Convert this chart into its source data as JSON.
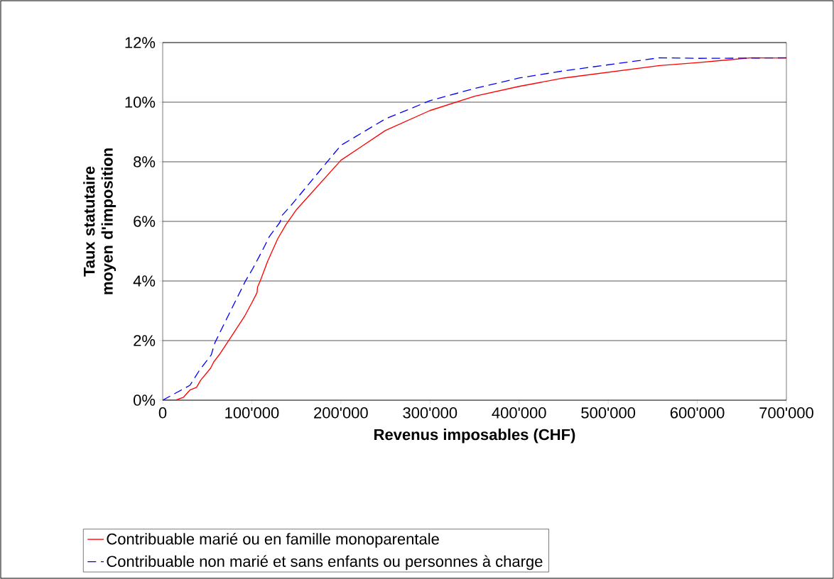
{
  "chart_data": {
    "type": "line",
    "xlabel": "Revenus imposables (CHF)",
    "ylabel": "Taux statutaire moyen d'imposition",
    "xlim": [
      0,
      700000
    ],
    "ylim": [
      0,
      12
    ],
    "xticks": [
      {
        "value": 0,
        "label": "0"
      },
      {
        "value": 100000,
        "label": "100'000"
      },
      {
        "value": 200000,
        "label": "200'000"
      },
      {
        "value": 300000,
        "label": "300'000"
      },
      {
        "value": 400000,
        "label": "400'000"
      },
      {
        "value": 500000,
        "label": "500'000"
      },
      {
        "value": 600000,
        "label": "600'000"
      },
      {
        "value": 700000,
        "label": "700'000"
      }
    ],
    "yticks": [
      {
        "value": 0,
        "label": "0%"
      },
      {
        "value": 2,
        "label": "2%"
      },
      {
        "value": 4,
        "label": "4%"
      },
      {
        "value": 6,
        "label": "6%"
      },
      {
        "value": 8,
        "label": "8%"
      },
      {
        "value": 10,
        "label": "10%"
      },
      {
        "value": 12,
        "label": "12%"
      }
    ],
    "grid": "y",
    "legend": "bottom",
    "marker": "none",
    "series": [
      {
        "name": "Contribuable marié ou en famille monoparentale",
        "color": "#ff0000",
        "line_style": "solid",
        "x": [
          0,
          14600,
          23400,
          30600,
          38000,
          42600,
          53700,
          57200,
          64400,
          74500,
          91800,
          99700,
          105900,
          106400,
          109600,
          117600,
          129000,
          138300,
          150300,
          200000,
          250000,
          300000,
          350000,
          400000,
          450000,
          557800,
          601700,
          661000,
          700000
        ],
        "values": [
          0,
          0,
          0.1,
          0.34,
          0.43,
          0.67,
          1.07,
          1.28,
          1.56,
          2.02,
          2.81,
          3.25,
          3.61,
          3.79,
          4.01,
          4.65,
          5.41,
          5.89,
          6.4,
          8.05,
          9.05,
          9.72,
          10.2,
          10.53,
          10.81,
          11.23,
          11.33,
          11.49,
          11.48
        ]
      },
      {
        "name": "Contribuable non marié et sans enfants ou personnes à charge",
        "color": "#0000ff",
        "line_style": "dashed",
        "x": [
          0,
          30600,
          41200,
          54500,
          58500,
          66500,
          75800,
          85100,
          93100,
          101000,
          111700,
          119700,
          131600,
          134300,
          142800,
          200000,
          250000,
          300000,
          350000,
          400000,
          450000,
          557800,
          601700,
          661000,
          700000
        ],
        "values": [
          0,
          0.5,
          1.0,
          1.52,
          1.92,
          2.41,
          2.97,
          3.53,
          4.01,
          4.41,
          5.01,
          5.49,
          5.97,
          6.21,
          6.49,
          8.55,
          9.44,
          10.05,
          10.46,
          10.81,
          11.05,
          11.49,
          11.47,
          11.48,
          11.49
        ]
      }
    ]
  }
}
